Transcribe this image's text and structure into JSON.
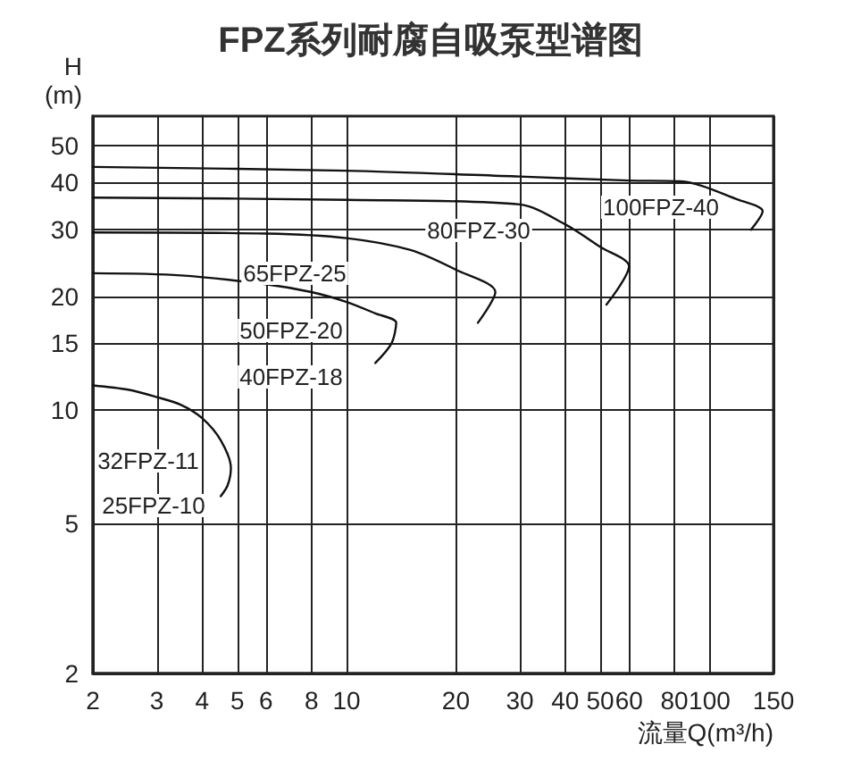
{
  "chart_data": {
    "type": "line",
    "title": "FPZ系列耐腐自吸泵型谱图",
    "xlabel": "流量Q(m³/h)",
    "ylabel": "H\n(m)",
    "log": "xy",
    "grid": true,
    "marker": "none",
    "line_style": "solid",
    "xlim": [
      2,
      150
    ],
    "xticks": [
      2,
      3,
      4,
      5,
      6,
      8,
      10,
      20,
      30,
      40,
      50,
      60,
      80,
      100,
      150
    ],
    "ylim": [
      2,
      60
    ],
    "yticks": [
      2,
      5,
      10,
      15,
      20,
      30,
      40,
      50
    ],
    "series": [
      {
        "color": "#111111",
        "x": [
          2,
          10,
          30,
          60,
          83,
          120,
          140,
          130
        ],
        "values": [
          44,
          43,
          41.5,
          40.5,
          40.3,
          36,
          33.6,
          30
        ]
      },
      {
        "color": "#111111",
        "x": [
          2,
          10,
          30,
          40,
          50,
          60,
          52
        ],
        "values": [
          36.5,
          36,
          35,
          31,
          27,
          24,
          19
        ]
      },
      {
        "color": "#111111",
        "x": [
          2,
          6,
          10,
          15,
          20,
          25.7,
          23
        ],
        "values": [
          29.5,
          29.3,
          28.5,
          26.5,
          23.5,
          20.5,
          17
        ]
      },
      {
        "color": "#111111",
        "x": [
          2,
          3.5,
          6,
          8,
          10,
          12,
          13.7,
          13.3,
          12
        ],
        "values": [
          23,
          22.7,
          21.5,
          20.5,
          19.3,
          18,
          17,
          15,
          13.3
        ]
      },
      {
        "color": "#111111",
        "x": [
          2,
          2.5,
          3,
          3.5,
          4,
          4.5,
          4.8,
          4.7,
          4.5
        ],
        "values": [
          11.6,
          11.3,
          10.8,
          10.3,
          9.5,
          8.3,
          7,
          6.3,
          5.9
        ]
      }
    ],
    "annotations": [
      "100FPZ-40",
      "80FPZ-30",
      "65FPZ-25",
      "50FPZ-20",
      "40FPZ-18",
      "32FPZ-11",
      "25FPZ-10"
    ]
  }
}
